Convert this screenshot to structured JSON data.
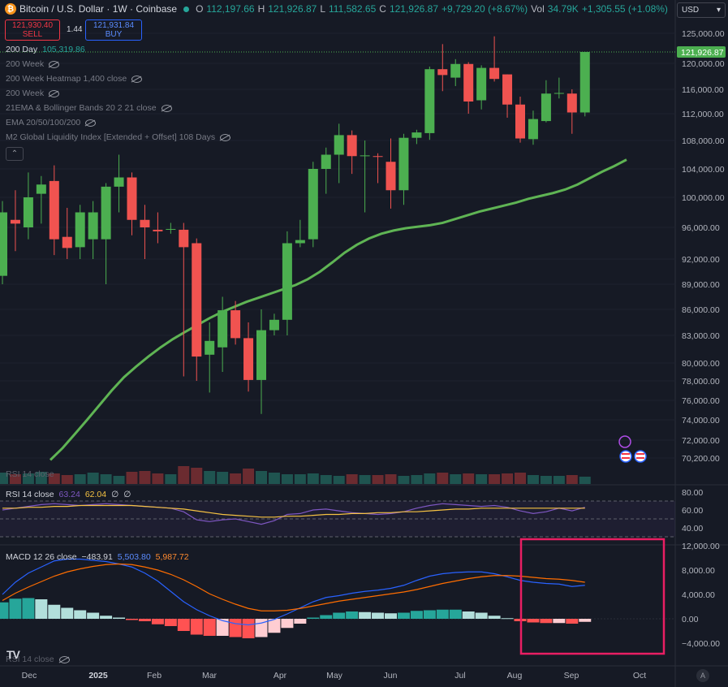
{
  "header": {
    "title": "Bitcoin / U.S. Dollar · 1W · Coinbase",
    "coin_glyph": "₿",
    "o_label": "O",
    "o_value": "112,197.66",
    "h_label": "H",
    "h_value": "121,926.87",
    "l_label": "L",
    "l_value": "111,582.65",
    "c_label": "C",
    "c_value": "121,926.87",
    "change": "+9,729.20 (+8.67%)",
    "vol_label": "Vol",
    "vol_value": "34.79K",
    "vol_change": "+1,305.55 (+1.08%)"
  },
  "trade": {
    "sell_price": "121,930.40",
    "sell_label": "SELL",
    "spread": "1.44",
    "buy_price": "121,931.84",
    "buy_label": "BUY"
  },
  "indicators": {
    "ma200_label": "200 Day",
    "ma200_value": "105,319.86",
    "hidden": [
      "200 Week",
      "200 Week Heatmap 1,400 close",
      "200 Week",
      "21EMA & Bollinger Bands 20 2 21 close",
      "EMA 20/50/100/200",
      "M2 Global Liquidity Index [Extended + Offset] 108 Days"
    ],
    "collapse_glyph": "⌃"
  },
  "currency": {
    "value": "USD",
    "chevron": "▾"
  },
  "price_axis": {
    "ticks": [
      125000,
      120000,
      116000,
      112000,
      108000,
      104000,
      100000,
      96000,
      92000,
      89000,
      86000,
      83000,
      80000,
      78000,
      76000,
      74000,
      72000,
      70200
    ],
    "tick_labels": [
      "125,000.00",
      "120,000.00",
      "116,000.00",
      "112,000.00",
      "108,000.00",
      "104,000.00",
      "100,000.00",
      "96,000.00",
      "92,000.00",
      "89,000.00",
      "86,000.00",
      "83,000.00",
      "80,000.00",
      "78,000.00",
      "76,000.00",
      "74,000.00",
      "72,000.00",
      "70,200.00"
    ],
    "last_price": "121,926.87"
  },
  "rsi": {
    "overlay_label": "RSI 14 close",
    "label": "RSI 14 close",
    "v1": "63.24",
    "v2": "62.04",
    "v3": "∅",
    "v4": "∅",
    "ticks": [
      "80.00",
      "60.00",
      "40.00"
    ],
    "colors": {
      "rsi": "#7e57c2",
      "ma": "#f5c242"
    }
  },
  "macd": {
    "label": "MACD 12 26 close",
    "hist": "−483.91",
    "macd": "5,503.80",
    "signal": "5,987.72",
    "ticks": [
      "12,000.00",
      "8,000.00",
      "4,000.00",
      "0.00",
      "−4,000.00"
    ],
    "overlay_label": "RSI 14 close",
    "colors": {
      "macd": "#2962ff",
      "signal": "#ff6d00"
    }
  },
  "time_axis": {
    "labels": [
      "Dec",
      "2025",
      "Feb",
      "Mar",
      "Apr",
      "May",
      "Jun",
      "Jul",
      "Aug",
      "Sep",
      "Oct"
    ]
  },
  "branding": {
    "logo_text": "TV"
  },
  "auto_button": "A",
  "colors": {
    "up": "#4caf50",
    "down": "#f05350",
    "ma200": "#5fb454",
    "highlight": "#e91e63"
  },
  "chart_data": {
    "type": "candlestick",
    "interval": "1W",
    "candles": [
      {
        "o": 90000,
        "h": 99500,
        "l": 89000,
        "c": 98000
      },
      {
        "o": 97000,
        "h": 101000,
        "l": 93000,
        "c": 96500
      },
      {
        "o": 96000,
        "h": 103500,
        "l": 94500,
        "c": 100000
      },
      {
        "o": 100500,
        "h": 103000,
        "l": 96500,
        "c": 101800
      },
      {
        "o": 102300,
        "h": 104500,
        "l": 92500,
        "c": 94500
      },
      {
        "o": 94800,
        "h": 98600,
        "l": 92000,
        "c": 93400
      },
      {
        "o": 93500,
        "h": 99000,
        "l": 92000,
        "c": 98000
      },
      {
        "o": 94500,
        "h": 99500,
        "l": 92000,
        "c": 98000
      },
      {
        "o": 94500,
        "h": 102000,
        "l": 89000,
        "c": 101500
      },
      {
        "o": 101500,
        "h": 106000,
        "l": 98000,
        "c": 102800
      },
      {
        "o": 102800,
        "h": 103500,
        "l": 95000,
        "c": 97000
      },
      {
        "o": 97000,
        "h": 99000,
        "l": 92000,
        "c": 96000
      },
      {
        "o": 95700,
        "h": 98000,
        "l": 94000,
        "c": 95500
      },
      {
        "o": 95800,
        "h": 96600,
        "l": 95200,
        "c": 95800
      },
      {
        "o": 95700,
        "h": 96600,
        "l": 78500,
        "c": 93500
      },
      {
        "o": 94000,
        "h": 94600,
        "l": 78000,
        "c": 80700
      },
      {
        "o": 80900,
        "h": 84500,
        "l": 76800,
        "c": 82400
      },
      {
        "o": 81700,
        "h": 87500,
        "l": 79000,
        "c": 85900
      },
      {
        "o": 85900,
        "h": 87000,
        "l": 82000,
        "c": 82700
      },
      {
        "o": 82700,
        "h": 84500,
        "l": 76900,
        "c": 78100
      },
      {
        "o": 78100,
        "h": 86000,
        "l": 74600,
        "c": 83600
      },
      {
        "o": 83600,
        "h": 85500,
        "l": 83000,
        "c": 84800
      },
      {
        "o": 84800,
        "h": 95500,
        "l": 83000,
        "c": 94000
      },
      {
        "o": 94000,
        "h": 97000,
        "l": 93500,
        "c": 94400
      },
      {
        "o": 94500,
        "h": 105000,
        "l": 93500,
        "c": 104000
      },
      {
        "o": 104000,
        "h": 107000,
        "l": 100500,
        "c": 106000
      },
      {
        "o": 106000,
        "h": 110500,
        "l": 102000,
        "c": 108800
      },
      {
        "o": 108800,
        "h": 109500,
        "l": 103300,
        "c": 105800
      },
      {
        "o": 105800,
        "h": 108000,
        "l": 98000,
        "c": 105900
      },
      {
        "o": 105800,
        "h": 106200,
        "l": 102000,
        "c": 105700
      },
      {
        "o": 105000,
        "h": 108300,
        "l": 98500,
        "c": 101000
      },
      {
        "o": 101000,
        "h": 109000,
        "l": 99000,
        "c": 108400
      },
      {
        "o": 108400,
        "h": 109600,
        "l": 107500,
        "c": 109200
      },
      {
        "o": 109100,
        "h": 119500,
        "l": 108100,
        "c": 119100
      },
      {
        "o": 119100,
        "h": 123200,
        "l": 115700,
        "c": 118200
      },
      {
        "o": 117800,
        "h": 120700,
        "l": 116500,
        "c": 119900
      },
      {
        "o": 119900,
        "h": 120200,
        "l": 112000,
        "c": 114000
      },
      {
        "o": 114200,
        "h": 119700,
        "l": 112700,
        "c": 119300
      },
      {
        "o": 119300,
        "h": 124500,
        "l": 117200,
        "c": 117600
      },
      {
        "o": 118300,
        "h": 118300,
        "l": 111400,
        "c": 113500
      },
      {
        "o": 113500,
        "h": 114800,
        "l": 107700,
        "c": 108300
      },
      {
        "o": 108200,
        "h": 112500,
        "l": 107400,
        "c": 111200
      },
      {
        "o": 110900,
        "h": 117400,
        "l": 110700,
        "c": 115300
      },
      {
        "o": 115300,
        "h": 117800,
        "l": 114500,
        "c": 115400
      },
      {
        "o": 115300,
        "h": 116000,
        "l": 109000,
        "c": 112200
      },
      {
        "o": 112200,
        "h": 121900,
        "l": 111600,
        "c": 121900
      }
    ],
    "ma200": [
      70000,
      71200,
      72600,
      74000,
      75500,
      77000,
      78400,
      79600,
      80700,
      81700,
      82600,
      83400,
      84200,
      85000,
      85700,
      86300,
      86900,
      87400,
      87900,
      88400,
      88900,
      89600,
      90500,
      91600,
      92800,
      93800,
      94600,
      95200,
      95600,
      95900,
      96100,
      96300,
      96600,
      97100,
      97600,
      98100,
      98500,
      98900,
      99300,
      99800,
      100200,
      100600,
      101100,
      101800,
      102700,
      103600,
      104400,
      105300
    ],
    "volume": [
      1.4,
      1.2,
      1.3,
      1.5,
      1.3,
      1.1,
      1.2,
      1.4,
      1.2,
      1.0,
      1.5,
      1.6,
      1.3,
      1.2,
      2.2,
      2.0,
      1.6,
      1.5,
      1.3,
      1.9,
      1.6,
      1.4,
      1.2,
      1.2,
      1.3,
      1.1,
      1.0,
      1.2,
      1.1,
      1.1,
      1.2,
      1.0,
      1.1,
      1.3,
      1.4,
      1.2,
      1.3,
      1.2,
      1.2,
      1.3,
      1.4,
      1.1,
      1.0,
      1.0,
      1.1,
      0.9
    ],
    "rsi": [
      60,
      62,
      64,
      66,
      67,
      66,
      65,
      66,
      67,
      66,
      65,
      64,
      63,
      62,
      58,
      49,
      47,
      49,
      50,
      47,
      44,
      48,
      55,
      56,
      60,
      61,
      59,
      57,
      56,
      55,
      56,
      58,
      62,
      65,
      67,
      66,
      65,
      64,
      65,
      63,
      59,
      56,
      58,
      62,
      59,
      63
    ],
    "rsi_ma": [
      62,
      62,
      63,
      63,
      64,
      64,
      65,
      65,
      65,
      65,
      65,
      64,
      63,
      62,
      61,
      59,
      57,
      55,
      54,
      53,
      52,
      52,
      53,
      53,
      54,
      55,
      55,
      56,
      56,
      57,
      57,
      58,
      58,
      59,
      60,
      61,
      61,
      62,
      62,
      62,
      62,
      62,
      62,
      62,
      62,
      62
    ],
    "macd_line": [
      4000,
      6000,
      7500,
      8500,
      9500,
      9800,
      9800,
      9600,
      9400,
      9000,
      8500,
      7500,
      6200,
      4500,
      2800,
      1500,
      500,
      -300,
      -800,
      -1000,
      -700,
      -100,
      800,
      1800,
      2800,
      3500,
      3800,
      4200,
      4500,
      4700,
      5000,
      5500,
      6300,
      7000,
      7400,
      7600,
      7700,
      7700,
      7400,
      6900,
      6300,
      6000,
      5800,
      5700,
      5300,
      5500
    ],
    "macd_signal": [
      3000,
      4200,
      5200,
      6100,
      7000,
      7700,
      8200,
      8600,
      8900,
      9000,
      8900,
      8500,
      8000,
      7300,
      6400,
      5300,
      4100,
      3200,
      2400,
      1700,
      1300,
      1300,
      1400,
      1700,
      2100,
      2500,
      2900,
      3200,
      3500,
      3800,
      4100,
      4400,
      4800,
      5300,
      5800,
      6200,
      6600,
      6900,
      7100,
      7100,
      7000,
      6800,
      6600,
      6500,
      6300,
      6000
    ],
    "macd_hist": [
      2700,
      3300,
      3400,
      3200,
      2300,
      1800,
      1400,
      1000,
      500,
      200,
      -200,
      -400,
      -900,
      -1200,
      -2000,
      -2600,
      -2800,
      -2800,
      -3000,
      -3200,
      -3000,
      -2300,
      -1500,
      -800,
      200,
      600,
      1000,
      1200,
      1100,
      1000,
      900,
      1000,
      1300,
      1400,
      1500,
      1500,
      1200,
      1000,
      500,
      100,
      -400,
      -600,
      -700,
      -700,
      -800,
      -500
    ]
  }
}
